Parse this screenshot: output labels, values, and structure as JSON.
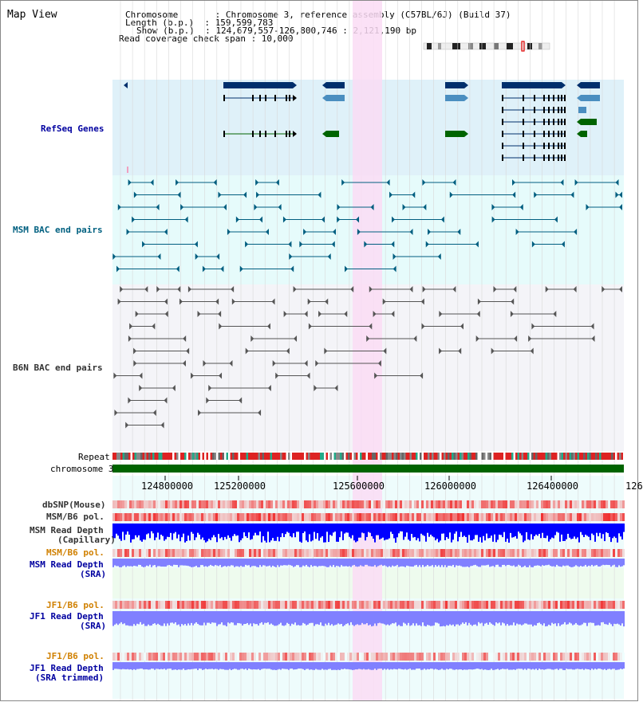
{
  "header": {
    "map_title": "Map View",
    "info_lines": [
      "Chromosome       : Chromosome 3, reference assembly (C57BL/6J) (Build 37)",
      "Length (b.p.)  : 159,599,783",
      "Show (b.p.)  : 124,679,557-126,800,746 : 2,121,190 bp",
      "Read coverage check span : 10,000"
    ]
  },
  "tracks": {
    "refseq": "RefSeq Genes",
    "msm_bac": "MSM BAC end pairs",
    "b6n_bac": "B6N BAC end pairs",
    "repeat": "Repeat",
    "chromosome": "chromosome 3",
    "dbsnp": "dbSNP(Mouse)",
    "msm_b6_pol_1": "MSM/B6 pol.",
    "msm_read_depth_cap_1": "MSM Read Depth",
    "msm_read_depth_cap_2": "(Capillary)",
    "msm_b6_pol_2": "MSM/B6 pol.",
    "msm_read_depth_sra_1": "MSM Read Depth",
    "msm_read_depth_sra_2": "(SRA)",
    "jf1_b6_pol_1": "JF1/B6 pol.",
    "jf1_read_depth_sra_1": "JF1 Read Depth",
    "jf1_read_depth_sra_2": "(SRA)",
    "jf1_b6_pol_2": "JF1/B6 pol.",
    "jf1_read_depth_trim_1": "JF1 Read Depth",
    "jf1_read_depth_trim_2": "(SRA trimmed)"
  },
  "axis": {
    "ticks": [
      "124800000",
      "125200000",
      "125600000",
      "126000000",
      "126400000",
      "126"
    ]
  },
  "colors": {
    "refseq_bg": "#dff1f9",
    "msm_bg": "#e6fbfb",
    "b6n_bg": "#f4f4f8",
    "highlight": "#fadcf4",
    "gene_dark": "#002f6c",
    "gene_mid": "#4a8ec0",
    "gene_green": "#006400",
    "msm_line": "#005e80",
    "b6n_line": "#555555",
    "chromosome_bar": "#006400",
    "depth_blue": "#0000ff",
    "depth_light": "#8080ff",
    "pol_red": "#f02020"
  }
}
